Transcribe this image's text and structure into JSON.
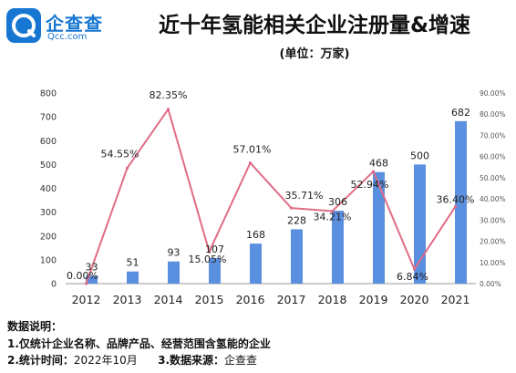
{
  "brand": {
    "name_cn": "企查查",
    "name_en": "Qcc.com",
    "color": "#1676d2"
  },
  "header": {
    "title": "近十年氢能相关企业注册量&增速",
    "unit": "(单位：万家)"
  },
  "chart_data": {
    "type": "bar",
    "title": "近十年氢能相关企业注册量&增速",
    "categories": [
      "2012",
      "2013",
      "2014",
      "2015",
      "2016",
      "2017",
      "2018",
      "2019",
      "2020",
      "2021"
    ],
    "series": [
      {
        "type": "bar",
        "axis": "left",
        "color": "#5b8fdf",
        "values": [
          33,
          51,
          93,
          107,
          168,
          228,
          306,
          468,
          500,
          682
        ]
      },
      {
        "type": "line",
        "axis": "right",
        "color": "#e06c85",
        "values": [
          0.0,
          54.55,
          82.35,
          15.05,
          57.01,
          35.71,
          34.21,
          52.94,
          6.84,
          36.4
        ]
      }
    ],
    "bar_labels": [
      "33",
      "51",
      "93",
      "107",
      "168",
      "228",
      "306",
      "468",
      "500",
      "682"
    ],
    "line_labels": [
      "0.00%",
      "54.55%",
      "82.35%",
      "15.05%",
      "57.01%",
      "35.71%",
      "34.21%",
      "52.94%",
      "6.84%",
      "36.40%"
    ],
    "y_left": {
      "min": 0,
      "max": 800,
      "ticks": [
        "0",
        "100",
        "200",
        "300",
        "400",
        "500",
        "600",
        "700",
        "800"
      ]
    },
    "y_right": {
      "min": 0,
      "max": 90,
      "ticks": [
        "0.00%",
        "10.00%",
        "20.00%",
        "30.00%",
        "40.00%",
        "50.00%",
        "60.00%",
        "70.00%",
        "80.00%",
        "90.00%"
      ]
    },
    "grid": false,
    "legend": "none"
  },
  "notes": {
    "heading": "数据说明：",
    "line1": "1.仅统计企业名称、品牌产品、经营范围含氢能的企业",
    "line2_label": "2.统计时间：",
    "line2_value": "2022年10月",
    "line3_label": "3.数据来源：",
    "line3_value": "企查查"
  }
}
